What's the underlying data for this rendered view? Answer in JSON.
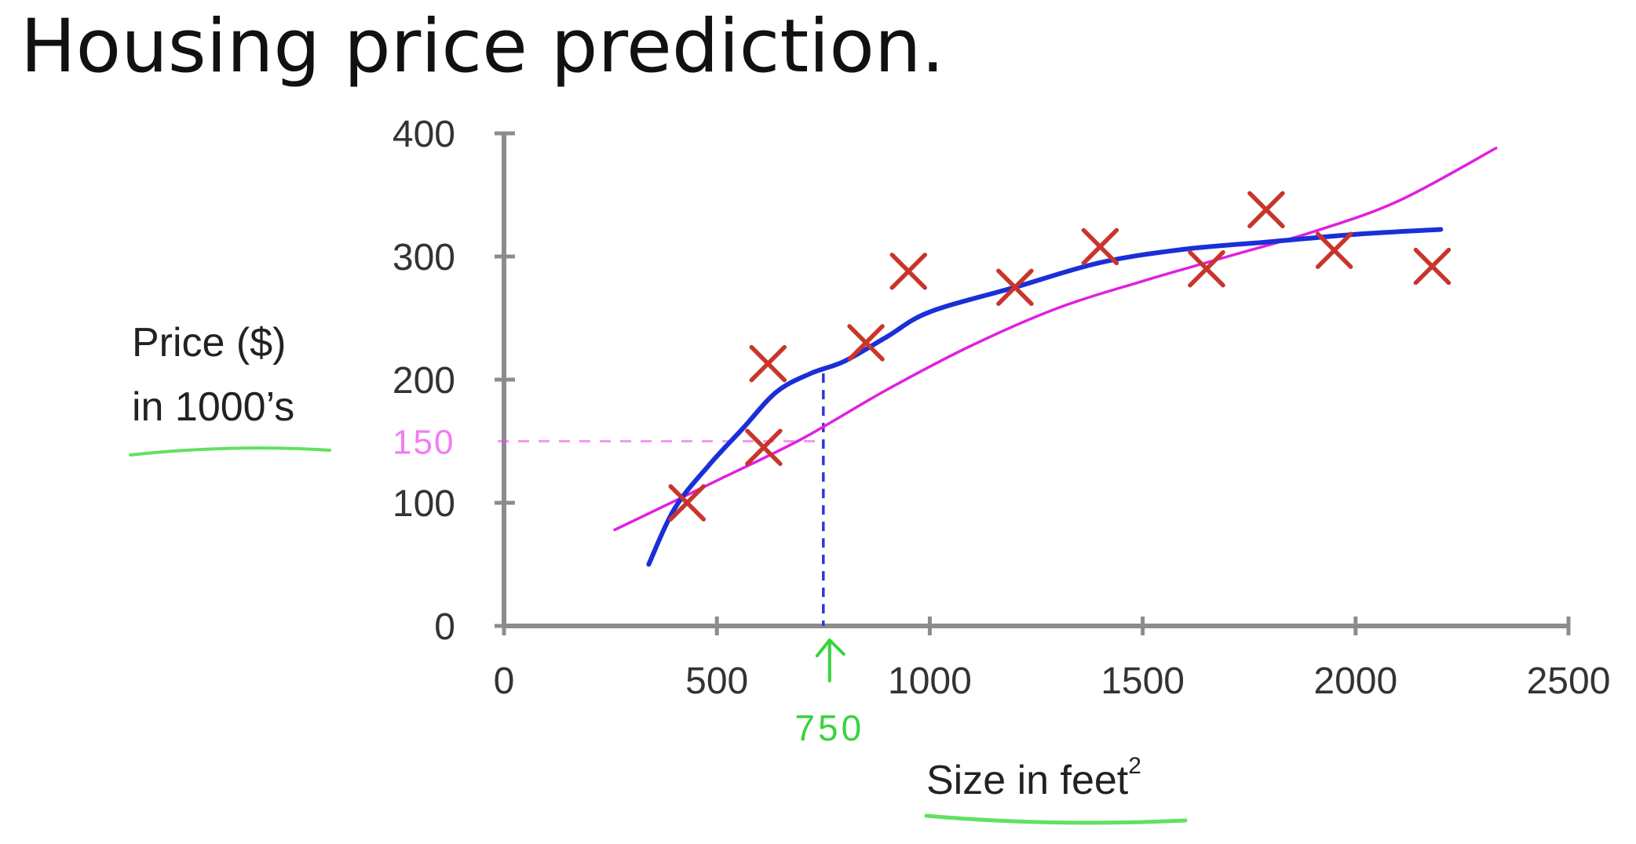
{
  "slide": {
    "title": "Housing price prediction."
  },
  "chart_data": {
    "type": "scatter",
    "title": "Housing price prediction.",
    "xlabel": "Size in feet",
    "xlabel_superscript": "2",
    "ylabel_lines": [
      "Price ($)",
      "in 1000’s"
    ],
    "xlim": [
      0,
      2500
    ],
    "ylim": [
      0,
      400
    ],
    "x_ticks": [
      0,
      500,
      1000,
      1500,
      2000,
      2500
    ],
    "y_ticks": [
      0,
      100,
      200,
      300,
      400
    ],
    "grid": false,
    "legend": "none",
    "series": [
      {
        "kind": "points",
        "marker": "x",
        "color": "#c8352b",
        "points": [
          {
            "x": 430,
            "y": 100
          },
          {
            "x": 610,
            "y": 145
          },
          {
            "x": 620,
            "y": 213
          },
          {
            "x": 850,
            "y": 230
          },
          {
            "x": 950,
            "y": 288
          },
          {
            "x": 1200,
            "y": 275
          },
          {
            "x": 1400,
            "y": 308
          },
          {
            "x": 1650,
            "y": 290
          },
          {
            "x": 1790,
            "y": 338
          },
          {
            "x": 1950,
            "y": 305
          },
          {
            "x": 2180,
            "y": 292
          }
        ]
      },
      {
        "kind": "line",
        "color": "#e020e0",
        "points": [
          {
            "x": 260,
            "y": 78
          },
          {
            "x": 500,
            "y": 118
          },
          {
            "x": 700,
            "y": 152
          },
          {
            "x": 900,
            "y": 192
          },
          {
            "x": 1100,
            "y": 228
          },
          {
            "x": 1300,
            "y": 258
          },
          {
            "x": 1500,
            "y": 280
          },
          {
            "x": 1700,
            "y": 300
          },
          {
            "x": 1900,
            "y": 320
          },
          {
            "x": 2100,
            "y": 345
          },
          {
            "x": 2330,
            "y": 388
          }
        ]
      },
      {
        "kind": "line",
        "color": "#1a2fd8",
        "points": [
          {
            "x": 340,
            "y": 50
          },
          {
            "x": 400,
            "y": 95
          },
          {
            "x": 480,
            "y": 130
          },
          {
            "x": 560,
            "y": 160
          },
          {
            "x": 640,
            "y": 190
          },
          {
            "x": 720,
            "y": 205
          },
          {
            "x": 800,
            "y": 215
          },
          {
            "x": 900,
            "y": 235
          },
          {
            "x": 1000,
            "y": 255
          },
          {
            "x": 1200,
            "y": 275
          },
          {
            "x": 1400,
            "y": 295
          },
          {
            "x": 1600,
            "y": 306
          },
          {
            "x": 1800,
            "y": 312
          },
          {
            "x": 2000,
            "y": 318
          },
          {
            "x": 2200,
            "y": 322
          }
        ]
      }
    ],
    "annotations": {
      "query_x": 750,
      "query_y": 150,
      "x_marker_text": "750",
      "y_marker_text": "150",
      "x_marker_color": "#39d33c",
      "y_marker_color": "#ee44ee",
      "query_line_color": "#3333dd",
      "underline_color": "#44dd44"
    }
  }
}
